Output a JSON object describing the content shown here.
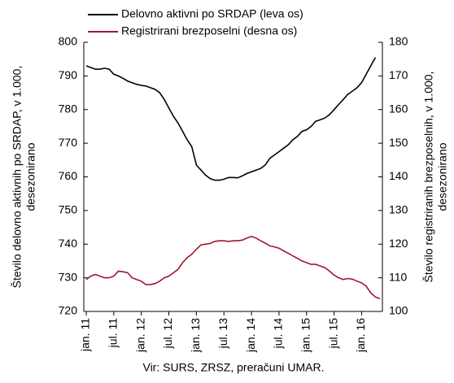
{
  "chart_data": {
    "type": "line",
    "ylabel": [
      "Število delovno aktivnih po SRDAP, v 1.000,",
      "desezonirano"
    ],
    "y2label": [
      "Število registriranih brezposelnih, v 1.000,",
      "desezonirano"
    ],
    "source": "Vir: SURS, ZRSZ, preračuni UMAR.",
    "categories": [
      "jan. 11",
      null,
      null,
      null,
      null,
      null,
      "jul. 11",
      null,
      null,
      null,
      null,
      null,
      "jan. 12",
      null,
      null,
      null,
      null,
      null,
      "jul. 12",
      null,
      null,
      null,
      null,
      null,
      "jan. 13",
      null,
      null,
      null,
      null,
      null,
      "jul. 13",
      null,
      null,
      null,
      null,
      null,
      "jan. 14",
      null,
      null,
      null,
      null,
      null,
      "jul. 14",
      null,
      null,
      null,
      null,
      null,
      "jan. 15",
      null,
      null,
      null,
      null,
      null,
      "jul. 15",
      null,
      null,
      null,
      null,
      null,
      "jan. 16",
      null,
      null,
      null,
      null
    ],
    "series": [
      {
        "name": "Delovno aktivni po SRDAP (leva os)",
        "color": "#000000",
        "axis": "y",
        "values": [
          793,
          792.5,
          792,
          792,
          792.3,
          792,
          790.5,
          790,
          789.3,
          788.5,
          788,
          787.5,
          787.2,
          787,
          786.5,
          786,
          785,
          783,
          780.5,
          778,
          776,
          773.5,
          771,
          769,
          763.5,
          762,
          760.5,
          759.5,
          759,
          759,
          759.3,
          759.8,
          759.8,
          759.7,
          760.3,
          761,
          761.5,
          762,
          762.5,
          763.5,
          765.5,
          766.5,
          767.5,
          768.5,
          769.5,
          771,
          772,
          773.5,
          774,
          775,
          776.5,
          777,
          777.5,
          778.5,
          780,
          781.5,
          783,
          784.5,
          785.5,
          786.5,
          788,
          790.5,
          793,
          795.5,
          null
        ]
      },
      {
        "name": "Registrirani brezposelni (desna os)",
        "color": "#a3152f",
        "axis": "y2",
        "values": [
          109.5,
          110.5,
          111,
          110.5,
          110,
          110,
          110.5,
          112,
          111.8,
          111.5,
          110,
          109.5,
          109,
          108,
          108,
          108.3,
          109,
          110,
          110.5,
          111.5,
          112.5,
          114.5,
          116,
          117,
          118.5,
          119.8,
          120,
          120.2,
          120.8,
          121,
          121,
          120.8,
          121,
          121,
          121.2,
          121.8,
          122.3,
          121.8,
          121,
          120.3,
          119.5,
          119.2,
          118.8,
          118,
          117.3,
          116.5,
          115.8,
          115,
          114.5,
          114,
          114,
          113.5,
          113,
          112,
          110.8,
          110,
          109.5,
          109.8,
          109.6,
          109,
          108.5,
          107.5,
          105.5,
          104.3,
          103.8
        ]
      }
    ],
    "ylim": [
      720,
      800
    ],
    "yticks": [
      720,
      730,
      740,
      750,
      760,
      770,
      780,
      790,
      800
    ],
    "y2lim": [
      100,
      180
    ],
    "y2ticks": [
      100,
      110,
      120,
      130,
      140,
      150,
      160,
      170,
      180
    ],
    "grid": false
  }
}
